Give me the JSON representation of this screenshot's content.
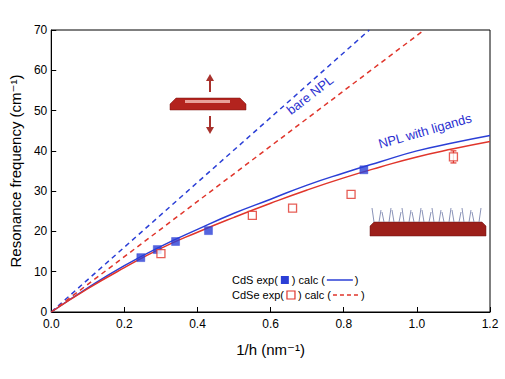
{
  "chart_data": {
    "type": "scatter",
    "x_label": "1/h (nm⁻¹)",
    "y_label": "Resonance frequency (cm⁻¹)",
    "xlim": [
      0,
      1.2
    ],
    "xticks": [
      {
        "value": 0,
        "label": "0.0"
      },
      {
        "value": 0.2,
        "label": "0.2"
      },
      {
        "value": 0.4,
        "label": "0.4"
      },
      {
        "value": 0.6,
        "label": "0.6"
      },
      {
        "value": 0.8,
        "label": "0.8"
      },
      {
        "value": 1.0,
        "label": "1.0"
      },
      {
        "value": 1.2,
        "label": "1.2"
      }
    ],
    "ylim": [
      0,
      70
    ],
    "yticks": [
      0,
      10,
      20,
      30,
      40,
      50,
      60,
      70
    ],
    "grid": false,
    "annotations": [
      {
        "text": "bare NPL",
        "color": "#2b2fd0"
      },
      {
        "text": "NPL with ligands",
        "color": "#2b2fd0"
      }
    ],
    "legend_rows": [
      [
        "CdS exp(",
        ") calc (",
        ")"
      ],
      [
        "CdSe exp(",
        ") calc (",
        ")"
      ]
    ],
    "series": [
      {
        "type": "scatter",
        "marker": "square",
        "color": "#2b3fd6",
        "x": [
          0.245,
          0.29,
          0.34,
          0.43,
          0.855
        ],
        "values": [
          13.5,
          15.5,
          17.5,
          20.2,
          35.3
        ]
      },
      {
        "type": "scatter",
        "marker": "square_open",
        "color": "#e0352b",
        "x": [
          0.3,
          0.55,
          0.66,
          0.82,
          1.1
        ],
        "values": [
          14.5,
          24.0,
          25.8,
          29.2,
          38.5
        ],
        "errors": [
          null,
          null,
          null,
          null,
          1.5
        ]
      },
      {
        "type": "line",
        "line_style": "solid",
        "color": "#2b3fd6",
        "x": [
          0,
          0.1,
          0.2,
          0.3,
          0.4,
          0.5,
          0.6,
          0.7,
          0.8,
          0.9,
          1.0,
          1.1,
          1.2
        ],
        "values": [
          0,
          6.0,
          11.5,
          16.3,
          20.5,
          24.5,
          28.0,
          31.5,
          34.5,
          37.3,
          40.0,
          42.0,
          43.8
        ]
      },
      {
        "type": "line",
        "line_style": "solid",
        "color": "#e0352b",
        "x": [
          0,
          0.1,
          0.2,
          0.3,
          0.4,
          0.5,
          0.6,
          0.7,
          0.8,
          0.9,
          1.0,
          1.1,
          1.2
        ],
        "values": [
          0,
          5.8,
          11.0,
          15.8,
          19.8,
          23.5,
          27.0,
          30.3,
          33.3,
          36.0,
          38.5,
          40.5,
          42.3
        ]
      },
      {
        "type": "line",
        "line_style": "dashed",
        "color": "#2b3fd6",
        "x": [
          0,
          0.87
        ],
        "values": [
          0,
          70
        ]
      },
      {
        "type": "line",
        "line_style": "dashed",
        "color": "#e0352b",
        "x": [
          0,
          1.02
        ],
        "values": [
          0,
          70
        ]
      }
    ]
  }
}
